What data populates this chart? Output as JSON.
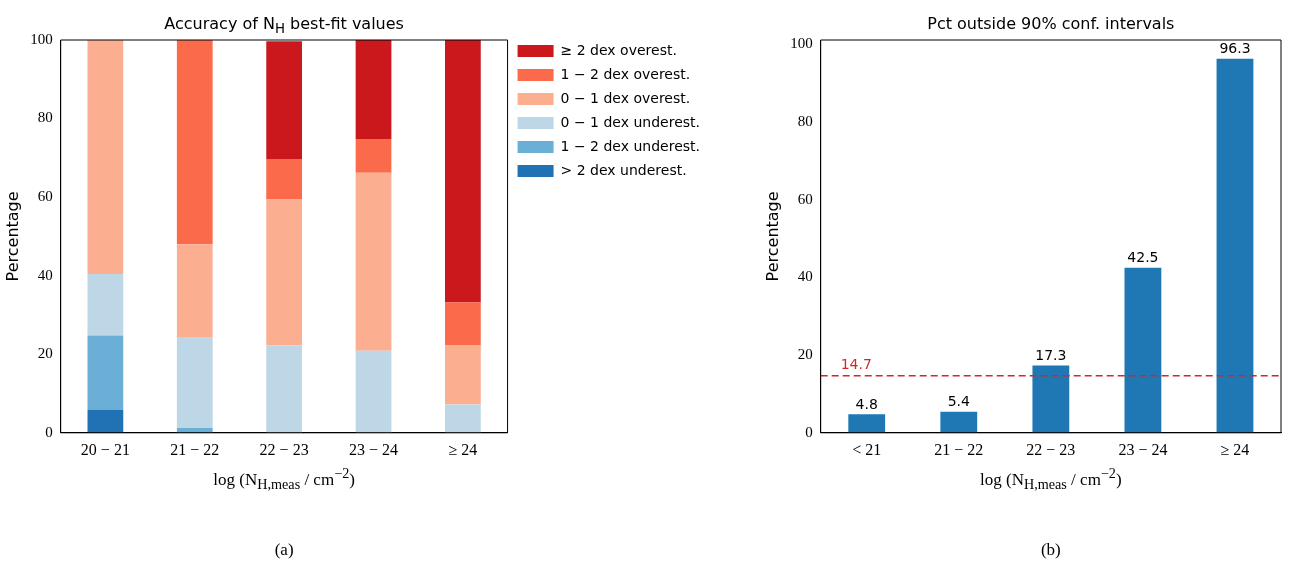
{
  "chart_data": [
    {
      "type": "bar",
      "title": "Accuracy of N$_{H}$ best-fit values",
      "xlabel": "log (N$_{H,meas}$ / cm$^{−2}$)",
      "ylabel": "Percentage",
      "categories": [
        "20 − 21",
        "21 − 22",
        "22 − 23",
        "23 − 24",
        "≥ 24"
      ],
      "stacked": true,
      "legend": "right",
      "ylim": [
        0,
        100
      ],
      "yticks": [
        0,
        20,
        40,
        60,
        80,
        100
      ],
      "series": [
        {
          "name": "> 2 dex underest.",
          "color": "#2171b5",
          "values": [
            5.8,
            0,
            null,
            0,
            0
          ]
        },
        {
          "name": "1 − 2 dex underest.",
          "color": "#6baed6",
          "values": [
            19.0,
            1.2,
            0,
            0,
            0
          ]
        },
        {
          "name": "0 − 1 dex underest.",
          "color": "#bdd7e7",
          "values": [
            15.6,
            23.0,
            22.2,
            20.9,
            7.2
          ]
        },
        {
          "name": "0 − 1 dex overest.",
          "color": "#fcae91",
          "values": [
            59.6,
            23.8,
            37.2,
            45.3,
            15.0
          ]
        },
        {
          "name": "1 − 2 dex overest.",
          "color": "#fb6a4a",
          "values": [
            0,
            52.0,
            10.3,
            8.6,
            11.0
          ]
        },
        {
          "name": "≥ 2 dex overest.",
          "color": "#cb181d",
          "values": [
            0,
            0,
            30.0,
            25.2,
            66.8
          ]
        }
      ],
      "annotations": [
        "(a)"
      ]
    },
    {
      "type": "bar",
      "title": "Pct outside 90% conf. intervals",
      "xlabel": "log (N$_{H,meas}$ / cm$^{−2}$)",
      "ylabel": "Percentage",
      "categories": [
        "< 21",
        "21 − 22",
        "22 − 23",
        "23 − 24",
        "≥ 24"
      ],
      "values": [
        4.8,
        5.4,
        17.3,
        42.5,
        96.3
      ],
      "color": "#1f77b4",
      "data_labels": true,
      "ylim": [
        0,
        101.1
      ],
      "yticks": [
        0,
        20,
        40,
        60,
        80,
        100
      ],
      "ref_lines": [
        {
          "axis": "y",
          "value": 14.7,
          "label": "14.7",
          "color": "#d62728",
          "line_style": "dashed"
        }
      ],
      "annotations": [
        "(b)"
      ]
    }
  ]
}
